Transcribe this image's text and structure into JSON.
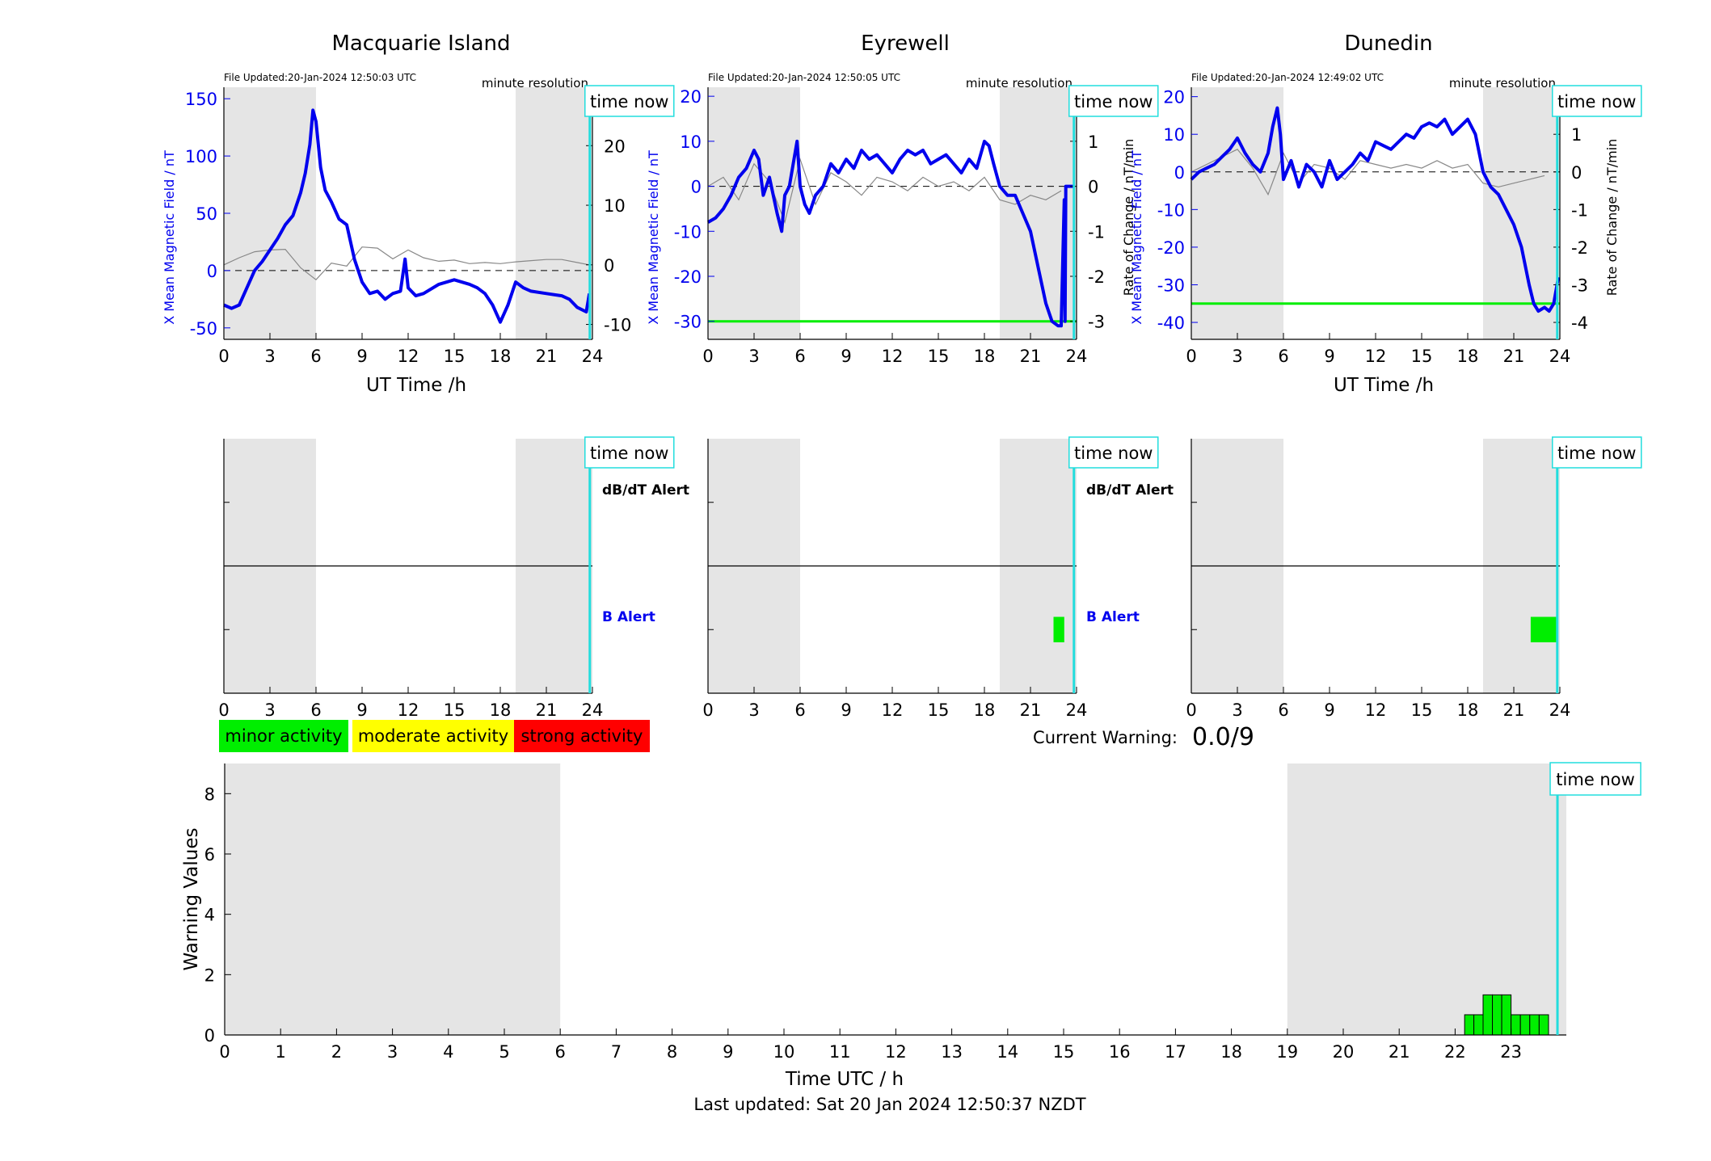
{
  "figure": {
    "last_updated": "Last updated: Sat 20 Jan 2024 12:50:37 NZDT",
    "current_warning_label": "Current Warning:",
    "current_warning_value": "0.0/9",
    "time_now_label": "time now",
    "time_now_hour": 23.83,
    "night_shading_hours": [
      [
        0,
        6
      ],
      [
        19,
        24
      ]
    ],
    "colors": {
      "mean_field": "#0000ee",
      "rate_of_change": "#888888",
      "threshold": "#00ee00",
      "time_now": "#22dddd",
      "shading": "#e5e5e5",
      "minor": "#00ee00",
      "moderate": "#ffff00",
      "strong": "#ff0000"
    }
  },
  "legend": {
    "minor": "minor activity",
    "moderate": "moderate activity",
    "strong": "strong activity"
  },
  "chart_data": [
    {
      "type": "line",
      "station": "Macquarie Island",
      "file_updated": "File Updated:20-Jan-2024 12:50:03 UTC",
      "resolution": "minute resolution",
      "xlabel": "UT Time /h",
      "ylabel_left": "X Mean Magnetic Field / nT",
      "ylabel_right": "",
      "xlim": [
        0,
        24
      ],
      "xticks": [
        "0",
        "3",
        "6",
        "9",
        "12",
        "15",
        "18",
        "21",
        "24"
      ],
      "ylim_left": [
        -60,
        160
      ],
      "yticks_left": [
        "-50",
        "0",
        "50",
        "100",
        "150"
      ],
      "ylim_right": [
        -12.5,
        29.8
      ],
      "yticks_right": [
        "-10",
        "0",
        "10",
        "20"
      ],
      "threshold": null,
      "series": [
        {
          "x": [
            0,
            0.5,
            1,
            1.5,
            2,
            2.5,
            3,
            3.5,
            4,
            4.5,
            5,
            5.3,
            5.6,
            5.8,
            6,
            6.3,
            6.6,
            7,
            7.5,
            8,
            8.5,
            9,
            9.5,
            10,
            10.5,
            11,
            11.5,
            11.8,
            12,
            12.5,
            13,
            14,
            15,
            16,
            16.5,
            17,
            17.5,
            18,
            18.5,
            19,
            19.5,
            20,
            21,
            22,
            22.5,
            23,
            23.6,
            23.8
          ],
          "y": [
            -30,
            -33,
            -30,
            -15,
            0,
            8,
            18,
            28,
            40,
            48,
            68,
            85,
            110,
            140,
            130,
            90,
            70,
            60,
            45,
            40,
            10,
            -10,
            -20,
            -18,
            -25,
            -20,
            -18,
            10,
            -15,
            -22,
            -20,
            -12,
            -8,
            -12,
            -15,
            -20,
            -30,
            -45,
            -30,
            -10,
            -15,
            -18,
            -20,
            -22,
            -25,
            -32,
            -36,
            -20
          ]
        },
        {
          "x": [
            0,
            1,
            2,
            3,
            4,
            5,
            6,
            7,
            8,
            9,
            10,
            11,
            12,
            13,
            14,
            15,
            16,
            17,
            18,
            19,
            20,
            21,
            22,
            23,
            23.8
          ],
          "y": [
            0,
            1.2,
            2.2,
            2.5,
            2.6,
            -0.5,
            -2.5,
            0.3,
            -0.2,
            3.0,
            2.8,
            1.0,
            2.5,
            1.2,
            0.6,
            0.8,
            0.2,
            0.4,
            0.2,
            0.5,
            0.7,
            0.9,
            0.9,
            0.4,
            0.0
          ]
        }
      ]
    },
    {
      "type": "line",
      "station": "Eyrewell",
      "file_updated": "File Updated:20-Jan-2024 12:50:05 UTC",
      "resolution": "minute resolution",
      "xlabel": "",
      "ylabel_left": "X Mean Magnetic Field / nT",
      "ylabel_right": "Rate of Change / nT/min",
      "xlim": [
        0,
        24
      ],
      "xticks": [
        "0",
        "3",
        "6",
        "9",
        "12",
        "15",
        "18",
        "21",
        "24"
      ],
      "ylim_left": [
        -34,
        22
      ],
      "yticks_left": [
        "-30",
        "-20",
        "-10",
        "0",
        "10",
        "20"
      ],
      "ylim_right": [
        -3.4,
        2.2
      ],
      "yticks_right": [
        "-3",
        "-2",
        "-1",
        "0",
        "1",
        "2"
      ],
      "threshold": -30,
      "series": [
        {
          "x": [
            0,
            0.5,
            1,
            1.5,
            2,
            2.5,
            3,
            3.3,
            3.6,
            4,
            4.5,
            4.8,
            5,
            5.3,
            5.6,
            5.8,
            6,
            6.3,
            6.6,
            7,
            7.5,
            8,
            8.5,
            9,
            9.5,
            10,
            10.5,
            11,
            11.5,
            12,
            12.5,
            13,
            13.5,
            14,
            14.5,
            15,
            15.5,
            16,
            16.5,
            17,
            17.5,
            18,
            18.3,
            18.6,
            19,
            19.5,
            20,
            20.5,
            21,
            21.5,
            22,
            22.4,
            22.8,
            23,
            23.2,
            23.25,
            23.3,
            23.7,
            23.9
          ],
          "y": [
            -8,
            -7,
            -5,
            -2,
            2,
            4,
            8,
            6,
            -2,
            2,
            -6,
            -10,
            -2,
            0,
            6,
            10,
            0,
            -4,
            -6,
            -2,
            0,
            5,
            3,
            6,
            4,
            8,
            6,
            7,
            5,
            3,
            6,
            8,
            7,
            8,
            5,
            6,
            7,
            5,
            3,
            6,
            4,
            10,
            9,
            5,
            0,
            -2,
            -2,
            -6,
            -10,
            -18,
            -26,
            -30,
            -31,
            -31,
            -3,
            -30,
            0,
            0,
            0
          ]
        },
        {
          "x": [
            0,
            1,
            2,
            3,
            4,
            5,
            6,
            7,
            8,
            9,
            10,
            11,
            12,
            13,
            14,
            15,
            16,
            17,
            18,
            19,
            20,
            21,
            22,
            23
          ],
          "y": [
            0.0,
            0.2,
            -0.3,
            0.5,
            0.1,
            -0.8,
            0.6,
            -0.4,
            0.3,
            0.1,
            -0.2,
            0.2,
            0.1,
            -0.1,
            0.2,
            0.0,
            0.1,
            -0.1,
            0.2,
            -0.3,
            -0.4,
            -0.2,
            -0.3,
            -0.1
          ]
        }
      ]
    },
    {
      "type": "line",
      "station": "Dunedin",
      "file_updated": "File Updated:20-Jan-2024 12:49:02 UTC",
      "resolution": "minute resolution",
      "xlabel": "UT Time /h",
      "ylabel_left": "X Mean Magnetic Field / nT",
      "ylabel_right": "Rate of Change / nT/min",
      "xlim": [
        0,
        24
      ],
      "xticks": [
        "0",
        "3",
        "6",
        "9",
        "12",
        "15",
        "18",
        "21",
        "24"
      ],
      "ylim_left": [
        -44.5,
        22.5
      ],
      "yticks_left": [
        "-40",
        "-30",
        "-20",
        "-10",
        "0",
        "10",
        "20"
      ],
      "ylim_right": [
        -4.45,
        2.25
      ],
      "yticks_right": [
        "-4",
        "-3",
        "-2",
        "-1",
        "0",
        "1",
        "2"
      ],
      "threshold": -35,
      "series": [
        {
          "x": [
            0,
            0.5,
            1,
            1.5,
            2,
            2.5,
            3,
            3.5,
            4,
            4.5,
            5,
            5.3,
            5.6,
            5.8,
            6,
            6.5,
            7,
            7.5,
            8,
            8.5,
            9,
            9.5,
            10,
            10.5,
            11,
            11.5,
            12,
            12.5,
            13,
            13.5,
            14,
            14.5,
            15,
            15.5,
            16,
            16.5,
            17,
            17.5,
            18,
            18.5,
            19,
            19.5,
            20,
            20.5,
            21,
            21.5,
            22,
            22.3,
            22.6,
            23,
            23.3,
            23.6,
            23.9
          ],
          "y": [
            -2,
            0,
            1,
            2,
            4,
            6,
            9,
            5,
            2,
            0,
            5,
            12,
            17,
            10,
            -2,
            3,
            -4,
            2,
            0,
            -4,
            3,
            -2,
            0,
            2,
            5,
            3,
            8,
            7,
            6,
            8,
            10,
            9,
            12,
            13,
            12,
            14,
            10,
            12,
            14,
            10,
            0,
            -4,
            -6,
            -10,
            -14,
            -20,
            -30,
            -35,
            -37,
            -36,
            -37,
            -35,
            -28
          ]
        },
        {
          "x": [
            0,
            1,
            2,
            3,
            4,
            5,
            6,
            7,
            8,
            9,
            10,
            11,
            12,
            13,
            14,
            15,
            16,
            17,
            18,
            19,
            20,
            21,
            22,
            23
          ],
          "y": [
            0.0,
            0.2,
            0.4,
            0.6,
            0.1,
            -0.6,
            0.5,
            -0.3,
            0.2,
            0.1,
            -0.2,
            0.3,
            0.2,
            0.1,
            0.2,
            0.1,
            0.3,
            0.1,
            0.2,
            -0.3,
            -0.4,
            -0.3,
            -0.2,
            -0.1
          ]
        }
      ]
    },
    {
      "type": "bar",
      "panel": "alerts-macquarie",
      "upper_label": "dB/dT Alert",
      "lower_label": "B Alert",
      "xlim": [
        0,
        24
      ],
      "xticks": [
        "0",
        "3",
        "6",
        "9",
        "12",
        "15",
        "18",
        "21",
        "24"
      ],
      "alert_blocks": []
    },
    {
      "type": "bar",
      "panel": "alerts-eyrewell",
      "upper_label": "dB/dT Alert",
      "lower_label": "B Alert",
      "xlim": [
        0,
        24
      ],
      "xticks": [
        "0",
        "3",
        "6",
        "9",
        "12",
        "15",
        "18",
        "21",
        "24"
      ],
      "alert_blocks": [
        {
          "row": "B",
          "start": 22.5,
          "end": 23.2
        }
      ]
    },
    {
      "type": "bar",
      "panel": "alerts-dunedin",
      "upper_label": "",
      "lower_label": "",
      "xlim": [
        0,
        24
      ],
      "xticks": [
        "0",
        "3",
        "6",
        "9",
        "12",
        "15",
        "18",
        "21",
        "24"
      ],
      "alert_blocks": [
        {
          "row": "B",
          "start": 22.1,
          "end": 23.8
        }
      ]
    },
    {
      "type": "bar",
      "panel": "warning-values",
      "xlabel": "Time UTC / h",
      "ylabel": "Warning Values",
      "xlim": [
        0,
        24
      ],
      "ylim": [
        0,
        9
      ],
      "xticks": [
        "0",
        "1",
        "2",
        "3",
        "4",
        "5",
        "6",
        "7",
        "8",
        "9",
        "10",
        "11",
        "12",
        "13",
        "14",
        "15",
        "16",
        "17",
        "18",
        "19",
        "20",
        "21",
        "22",
        "23"
      ],
      "yticks": [
        "0",
        "2",
        "4",
        "6",
        "8"
      ],
      "bars": [
        {
          "start": 22.17,
          "end": 22.5,
          "value": 0.67
        },
        {
          "start": 22.5,
          "end": 23.0,
          "value": 1.33
        },
        {
          "start": 23.0,
          "end": 23.67,
          "value": 0.67
        }
      ]
    }
  ]
}
